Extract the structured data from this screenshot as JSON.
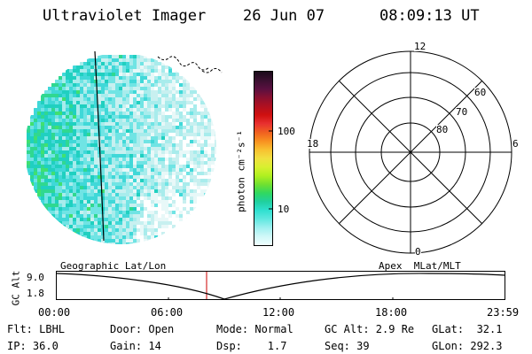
{
  "header": {
    "title": "Ultraviolet Imager",
    "date": "26 Jun 07",
    "time": "08:09:13 UT"
  },
  "colorbar": {
    "unit_label": "photon cm⁻²s⁻¹",
    "tick_100": "100",
    "tick_10": "10",
    "colors_top_to_bottom": [
      "#1a0a1a",
      "#3a1030",
      "#5a1040",
      "#8a1030",
      "#b01020",
      "#d01010",
      "#e83030",
      "#f06020",
      "#f89020",
      "#f8c030",
      "#f0e040",
      "#d8f030",
      "#b0f020",
      "#70e030",
      "#30d860",
      "#20d0a0",
      "#30e0d0",
      "#60e8e0",
      "#a0f0f0",
      "#d0f8f8",
      "#f0ffff"
    ]
  },
  "polar_grid": {
    "labels": {
      "top": "12",
      "bottom": "0",
      "left": "18",
      "right": "6",
      "lat60": "60",
      "lat70": "70",
      "lat80": "80"
    }
  },
  "timeline": {
    "left_title": "Geographic Lat/Lon",
    "right_title": "Apex  MLat/MLT",
    "y_axis_label": "GC Alt",
    "y_top": "9.0",
    "y_bottom": "1.8",
    "x_ticks": [
      "00:00",
      "06:00",
      "12:00",
      "18:00",
      "23:59"
    ],
    "current_time_marker_color": "#cc0000"
  },
  "info": {
    "row1": {
      "flt": "Flt: LBHL",
      "door": "Door: Open",
      "mode": "Mode: Normal",
      "gcalt": "GC Alt: 2.9 Re",
      "glat": "GLat:  32.1"
    },
    "row2": {
      "ip": "IP: 36.0",
      "gain": "Gain: 14",
      "dsp": "Dsp:    1.7",
      "seq": "Seq: 39",
      "glon": "GLon: 292.3"
    }
  }
}
